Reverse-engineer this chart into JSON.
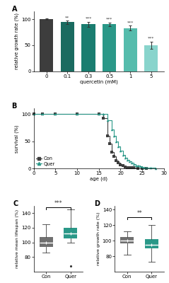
{
  "panel_A": {
    "categories": [
      "0",
      "0.1",
      "0.3",
      "0.5",
      "1",
      "5"
    ],
    "values": [
      100,
      94,
      90,
      90,
      83,
      50
    ],
    "errors": [
      1.0,
      3.0,
      4.5,
      3.5,
      4.5,
      7
    ],
    "colors": [
      "#3d3d3d",
      "#1a6b60",
      "#1a7d70",
      "#2a9888",
      "#55bcac",
      "#88d4cc"
    ],
    "significance": [
      "",
      "**",
      "***",
      "***",
      "***",
      "***"
    ],
    "xlabel": "quercetin (mM)",
    "ylabel": "relative growth rate (%)",
    "ylim": [
      0,
      115
    ],
    "yticks": [
      0,
      50,
      100
    ],
    "panel_label": "A"
  },
  "panel_B": {
    "con_x": [
      0,
      2,
      5,
      10,
      15,
      16,
      17,
      17.5,
      18,
      18.5,
      19,
      19.5,
      20,
      20.5,
      21,
      21.5,
      22,
      22.5,
      23,
      24,
      25,
      26
    ],
    "con_y": [
      100,
      100,
      100,
      100,
      100,
      92,
      60,
      45,
      30,
      22,
      15,
      10,
      7,
      5,
      3,
      2,
      2,
      1,
      1,
      0,
      0,
      0
    ],
    "quer_x": [
      0,
      2,
      5,
      10,
      15,
      16,
      17,
      18,
      18.5,
      19,
      19.5,
      20,
      20.5,
      21,
      21.5,
      22,
      22.5,
      23,
      23.5,
      24,
      24.5,
      25,
      25.5,
      26,
      27,
      28
    ],
    "quer_y": [
      100,
      100,
      100,
      100,
      100,
      100,
      88,
      72,
      60,
      50,
      40,
      32,
      25,
      20,
      16,
      13,
      10,
      8,
      6,
      5,
      4,
      3,
      2,
      2,
      1,
      0
    ],
    "con_color": "#3d3d3d",
    "quer_color": "#2a9888",
    "xlabel": "age (d)",
    "ylabel": "survival (%)",
    "xlim": [
      0,
      30
    ],
    "ylim": [
      0,
      110
    ],
    "yticks": [
      0,
      50,
      100
    ],
    "xticks": [
      0,
      5,
      10,
      15,
      20,
      25,
      30
    ],
    "panel_label": "B"
  },
  "panel_C": {
    "con_median": 100,
    "con_q1": 94,
    "con_q3": 107,
    "con_whislo": 86,
    "con_whishi": 125,
    "quer_median": 112,
    "quer_q1": 105,
    "quer_q3": 120,
    "quer_whislo": 100,
    "quer_whishi": 145,
    "con_mean": 100,
    "quer_mean": 112,
    "con_outliers": [],
    "quer_outliers": [
      68
    ],
    "con_color": "#707070",
    "quer_color": "#2a9888",
    "ylabel": "relative mean lifespan (%)",
    "ylim": [
      60,
      150
    ],
    "yticks": [
      80,
      100,
      120,
      140
    ],
    "sig_y": 148,
    "significance": "***",
    "panel_label": "C",
    "categories": [
      "Con",
      "Quer"
    ]
  },
  "panel_D": {
    "con_median": 100,
    "con_q1": 96,
    "con_q3": 105,
    "con_whislo": 82,
    "con_whishi": 112,
    "quer_median": 95,
    "quer_q1": 90,
    "quer_q3": 102,
    "quer_whislo": 73,
    "quer_whishi": 120,
    "con_mean": 100,
    "quer_mean": 95,
    "con_outliers": [],
    "quer_outliers": [],
    "con_color": "#707070",
    "quer_color": "#2a9888",
    "ylabel": "relative growth rate (%)",
    "ylim": [
      60,
      145
    ],
    "yticks": [
      80,
      100,
      120,
      140
    ],
    "sig_y": 130,
    "significance": "**",
    "panel_label": "D",
    "categories": [
      "Con",
      "Quer"
    ]
  }
}
